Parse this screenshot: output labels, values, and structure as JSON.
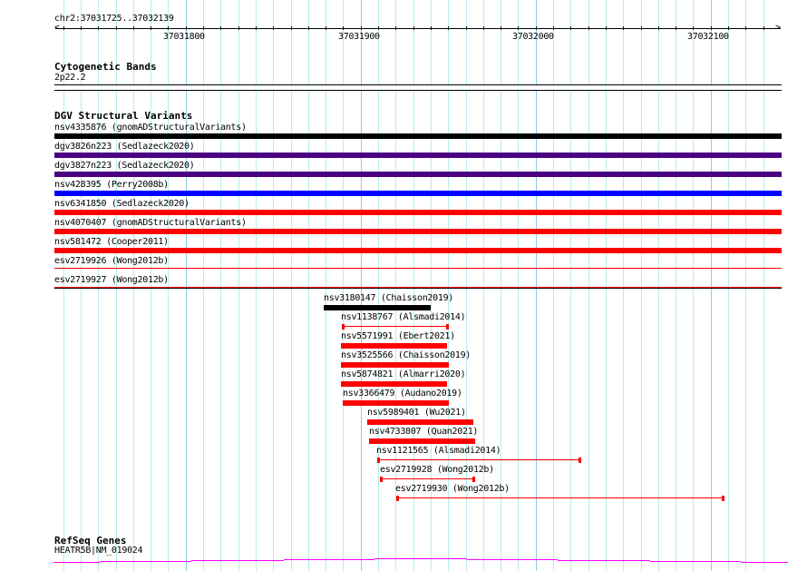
{
  "ruler": {
    "location": "chr2:37031725..37032139",
    "tick_labels": [
      "37031800",
      "37031900",
      "37032000",
      "37032100"
    ]
  },
  "cytobands": {
    "title": "Cytogenetic Bands",
    "band": "2p22.2"
  },
  "dgv": {
    "title": "DGV Structural Variants",
    "full_rows": [
      {
        "label": "nsv4335876 (gnomADStructuralVariants)",
        "color": "#000000"
      },
      {
        "label": "dgv3826n223 (Sedlazeck2020)",
        "color": "#4b0082"
      },
      {
        "label": "dgv3827n223 (Sedlazeck2020)",
        "color": "#4b0082"
      },
      {
        "label": "nsv428395 (Perry2008b)",
        "color": "#0000ff"
      },
      {
        "label": "nsv6341850 (Sedlazeck2020)",
        "color": "#ff0000"
      },
      {
        "label": "nsv4070407 (gnomADStructuralVariants)",
        "color": "#ff0000"
      },
      {
        "label": "nsv581472 (Cooper2011)",
        "color": "#ff0000"
      },
      {
        "label": "esv2719926 (Wong2012b)",
        "color": "#ff0000"
      },
      {
        "label": "esv2719927 (Wong2012b)",
        "color": "#ff0000"
      }
    ],
    "partial_rows": [
      {
        "label": "nsv3180147 (Chaisson2019)",
        "color": "#000000"
      },
      {
        "label": "nsv1138767 (Alsmadi2014)",
        "color": "#ff0000"
      },
      {
        "label": "nsv5571991 (Ebert2021)",
        "color": "#ff0000"
      },
      {
        "label": "nsv3525566 (Chaisson2019)",
        "color": "#ff0000"
      },
      {
        "label": "nsv5874821 (Almarri2020)",
        "color": "#ff0000"
      },
      {
        "label": "nsv3366479 (Audano2019)",
        "color": "#ff0000"
      },
      {
        "label": "nsv5989401 (Wu2021)",
        "color": "#ff0000"
      },
      {
        "label": "nsv4733807 (Quan2021)",
        "color": "#ff0000"
      },
      {
        "label": "nsv1121565 (Alsmadi2014)",
        "color": "#ff0000"
      },
      {
        "label": "esv2719928 (Wong2012b)",
        "color": "#ff0000"
      },
      {
        "label": "esv2719930 (Wong2012b)",
        "color": "#ff0000"
      }
    ]
  },
  "refseq": {
    "title": "RefSeq Genes",
    "gene": "HEATR5B|NM_019024",
    "color": "#ff00ff"
  }
}
